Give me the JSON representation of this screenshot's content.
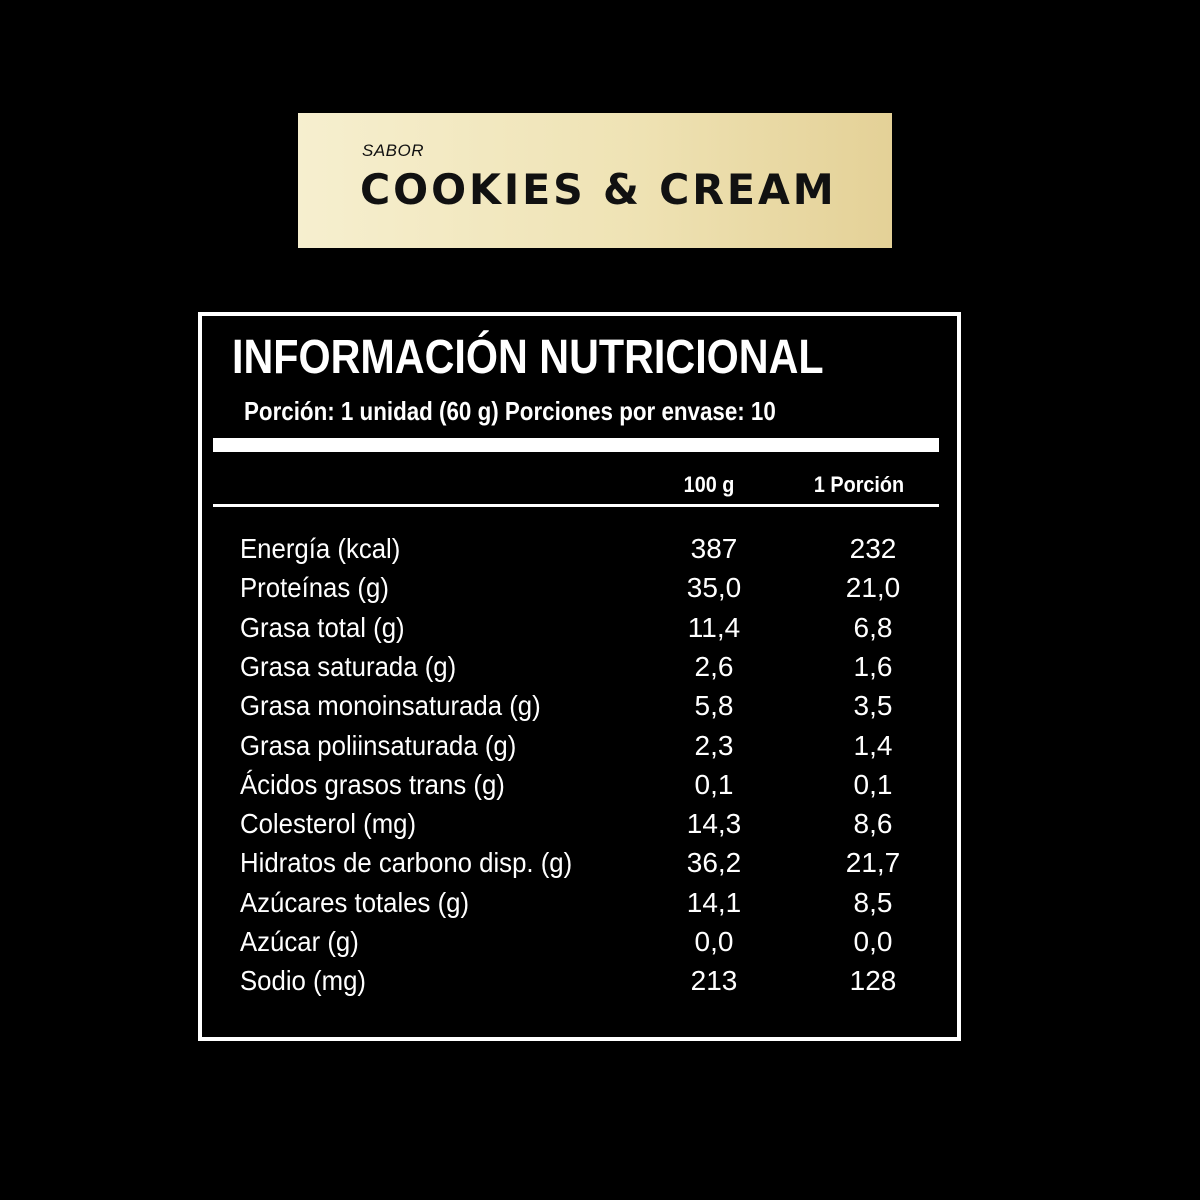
{
  "flavor": {
    "label": "SABOR",
    "name": "COOKIES & CREAM"
  },
  "nutrition": {
    "title": "INFORMACIÓN NUTRICIONAL",
    "serving": "Porción: 1 unidad (60 g) Porciones por envase: 10",
    "columns": [
      "100 g",
      "1 Porción"
    ],
    "rows": [
      {
        "label": "Energía (kcal)",
        "per100": "387",
        "perServing": "232"
      },
      {
        "label": "Proteínas (g)",
        "per100": "35,0",
        "perServing": "21,0"
      },
      {
        "label": "Grasa total (g)",
        "per100": "11,4",
        "perServing": "6,8"
      },
      {
        "label": "Grasa saturada (g)",
        "per100": "2,6",
        "perServing": "1,6"
      },
      {
        "label": "Grasa monoinsaturada (g)",
        "per100": "5,8",
        "perServing": "3,5"
      },
      {
        "label": "Grasa poliinsaturada (g)",
        "per100": "2,3",
        "perServing": "1,4"
      },
      {
        "label": "Ácidos grasos trans (g)",
        "per100": "0,1",
        "perServing": "0,1"
      },
      {
        "label": "Colesterol (mg)",
        "per100": "14,3",
        "perServing": "8,6"
      },
      {
        "label": "Hidratos de carbono disp. (g)",
        "per100": "36,2",
        "perServing": "21,7"
      },
      {
        "label": "Azúcares totales (g)",
        "per100": "14,1",
        "perServing": "8,5"
      },
      {
        "label": "Azúcar (g)",
        "per100": "0,0",
        "perServing": "0,0"
      },
      {
        "label": "Sodio (mg)",
        "per100": "213",
        "perServing": "128"
      }
    ]
  }
}
